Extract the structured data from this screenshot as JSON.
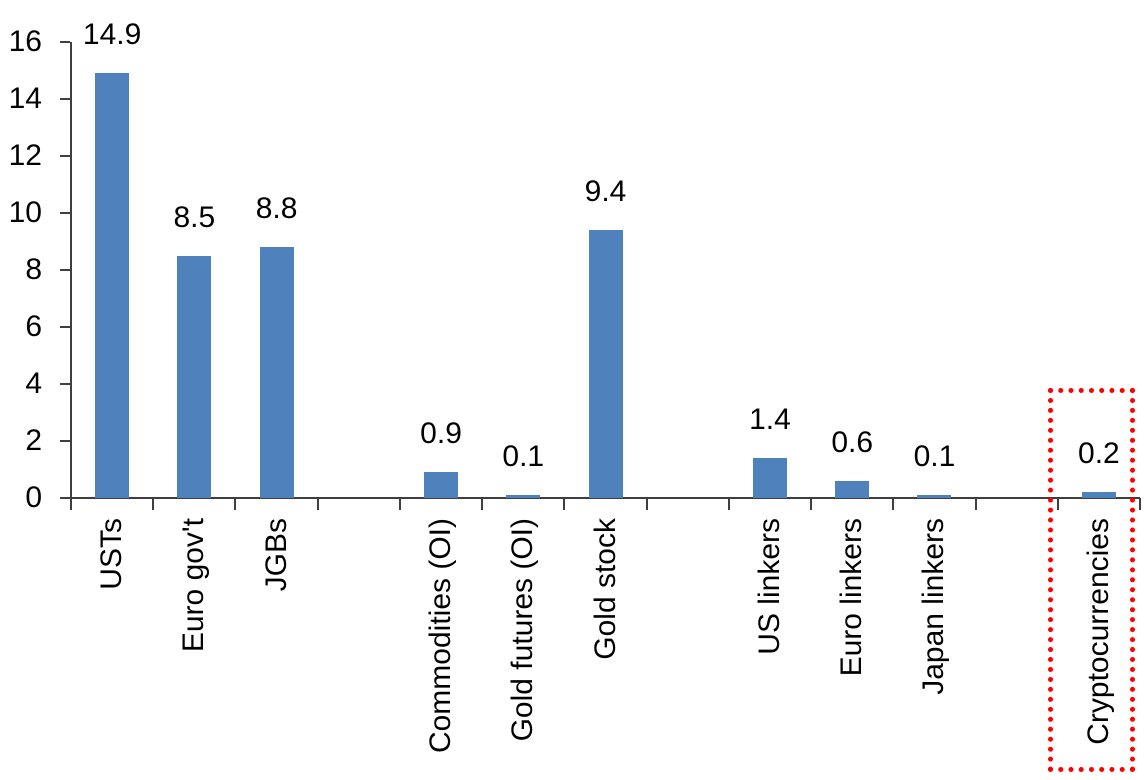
{
  "chart_data": {
    "type": "bar",
    "title": "",
    "categories": [
      "USTs",
      "Euro gov't",
      "JGBs",
      "",
      "Commodities (OI)",
      "Gold futures (OI)",
      "Gold stock",
      "",
      "US linkers",
      "Euro linkers",
      "Japan linkers",
      "",
      "Cryptocurrencies"
    ],
    "values": [
      14.9,
      8.5,
      8.8,
      null,
      0.9,
      0.1,
      9.4,
      null,
      1.4,
      0.6,
      0.1,
      null,
      0.2
    ],
    "data_labels": [
      "14.9",
      "8.5",
      "8.8",
      "",
      "0.9",
      "0.1",
      "9.4",
      "",
      "1.4",
      "0.6",
      "0.1",
      "",
      "0.2"
    ],
    "yticks": [
      0,
      2,
      4,
      6,
      8,
      10,
      12,
      14,
      16
    ],
    "ylim": [
      0,
      16
    ],
    "grid": "off",
    "legend": "none",
    "bar_color": "#4F81BD",
    "axis_color": "#3F3F3F",
    "text_color": "#000000",
    "highlight": {
      "label": "Cryptocurrencies",
      "category_index": 12,
      "box_color": "#FF0000",
      "box_style": "dotted"
    }
  }
}
